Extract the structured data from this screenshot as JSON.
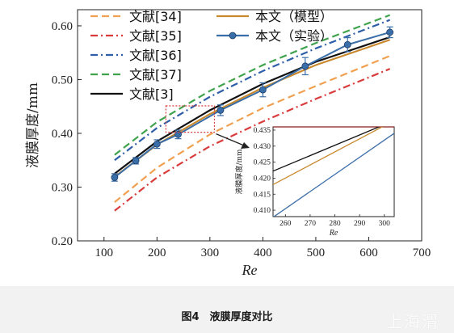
{
  "chart_data": {
    "type": "line",
    "xlabel": "Re",
    "ylabel": "液膜厚度/mm",
    "xlim": [
      50,
      700
    ],
    "ylim": [
      0.2,
      0.63
    ],
    "x_ticks": [
      "100",
      "200",
      "300",
      "400",
      "500",
      "600",
      "700"
    ],
    "y_ticks": [
      "0.20",
      "0.30",
      "0.40",
      "0.50",
      "0.60"
    ],
    "legend_position": "top-left",
    "series": [
      {
        "name": "文献[34]",
        "color": "#f0a050",
        "dash": "dash",
        "x": [
          120,
          200,
          300,
          400,
          500,
          640
        ],
        "y": [
          0.272,
          0.336,
          0.398,
          0.447,
          0.488,
          0.544
        ]
      },
      {
        "name": "文献[35]",
        "color": "#d93b3b",
        "dash": "dashdot",
        "x": [
          120,
          200,
          300,
          400,
          500,
          640
        ],
        "y": [
          0.256,
          0.318,
          0.376,
          0.422,
          0.464,
          0.52
        ]
      },
      {
        "name": "文献[36]",
        "color": "#2f5ea8",
        "dash": "dashdot",
        "x": [
          120,
          200,
          300,
          400,
          500,
          640
        ],
        "y": [
          0.35,
          0.41,
          0.468,
          0.516,
          0.558,
          0.611
        ]
      },
      {
        "name": "文献[37]",
        "color": "#3fa34d",
        "dash": "dash",
        "x": [
          120,
          200,
          300,
          400,
          500,
          640
        ],
        "y": [
          0.36,
          0.421,
          0.479,
          0.527,
          0.568,
          0.62
        ]
      },
      {
        "name": "文献[3]",
        "color": "#111111",
        "dash": "solid",
        "x": [
          120,
          200,
          300,
          400,
          500,
          640
        ],
        "y": [
          0.325,
          0.385,
          0.443,
          0.492,
          0.533,
          0.579
        ]
      },
      {
        "name": "本文（模型）",
        "color": "#c98a2e",
        "dash": "solid",
        "x": [
          120,
          200,
          300,
          400,
          500,
          640
        ],
        "y": [
          0.319,
          0.379,
          0.436,
          0.485,
          0.527,
          0.574
        ]
      },
      {
        "name": "本文（实验）",
        "color": "#3a6ea8",
        "dash": "solid",
        "markers": true,
        "x": [
          120,
          160,
          200,
          240,
          320,
          400,
          480,
          560,
          640
        ],
        "y": [
          0.318,
          0.349,
          0.38,
          0.398,
          0.443,
          0.481,
          0.525,
          0.565,
          0.588
        ],
        "err": [
          0.007,
          0.006,
          0.008,
          0.008,
          0.01,
          0.013,
          0.016,
          0.013,
          0.01
        ]
      }
    ],
    "inset": {
      "xlabel": "Re",
      "ylabel": "液膜厚度/mm",
      "xlim": [
        255,
        304
      ],
      "ylim": [
        0.408,
        0.436
      ],
      "x_ticks": [
        "260",
        "270",
        "280",
        "290",
        "300"
      ],
      "y_ticks": [
        "0.410",
        "0.415",
        "0.420",
        "0.425",
        "0.430",
        "0.435"
      ],
      "series": [
        {
          "name": "文献[3]",
          "color": "#111111",
          "x": [
            255,
            304
          ],
          "y": [
            0.4222,
            0.438
          ]
        },
        {
          "name": "本文（模型）",
          "color": "#c98a2e",
          "x": [
            255,
            304
          ],
          "y": [
            0.418,
            0.438
          ]
        },
        {
          "name": "本文（实验）",
          "color": "#3a6ea8",
          "x": [
            255,
            304
          ],
          "y": [
            0.4078,
            0.434
          ]
        }
      ]
    }
  },
  "caption": "图4　液膜厚度对比",
  "watermark": "上海渭"
}
